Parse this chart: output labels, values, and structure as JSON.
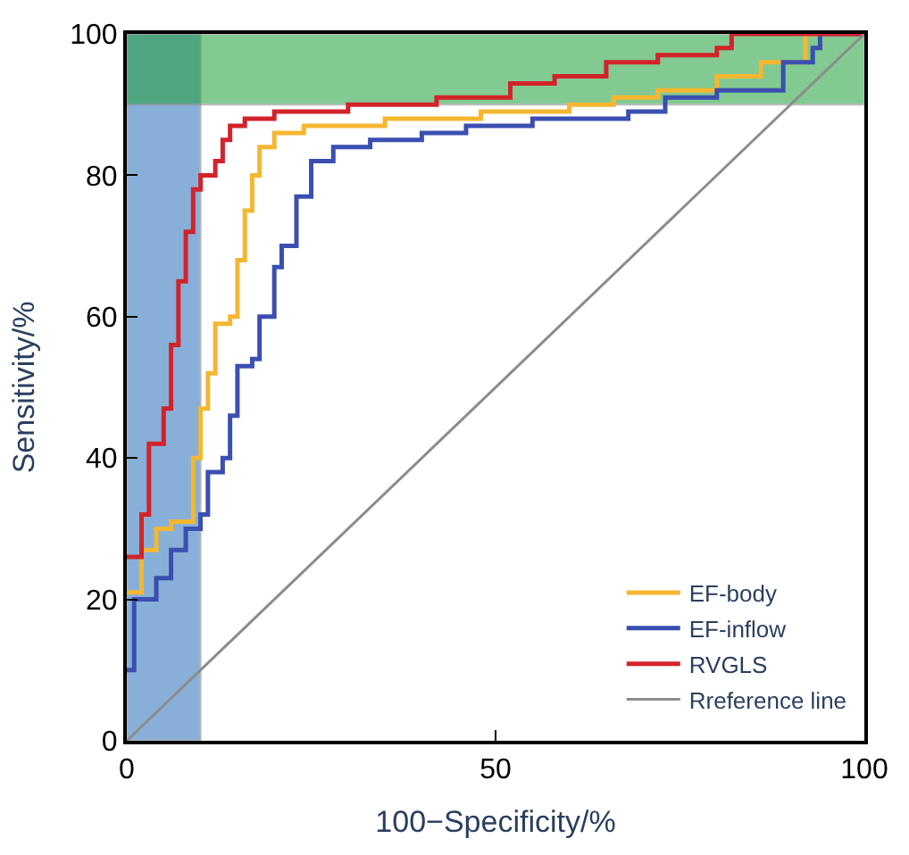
{
  "chart_data": {
    "type": "step",
    "xlabel": "100−Specificity/%",
    "ylabel": "Sensitivity/%",
    "xlim": [
      0,
      100
    ],
    "ylim": [
      0,
      100
    ],
    "xticks": [
      0,
      50,
      100
    ],
    "yticks": [
      0,
      20,
      40,
      60,
      80,
      100
    ],
    "grid": false,
    "legend": "bottom right",
    "marker": "none",
    "line_style": "solid",
    "series": [
      {
        "name": "EF-body",
        "color": "#f5b731",
        "x": [
          0,
          2,
          4,
          6,
          9,
          10,
          11,
          12,
          14,
          15,
          16,
          17,
          18,
          20,
          24,
          35,
          48,
          60,
          66,
          72,
          80,
          86,
          92,
          100
        ],
        "values": [
          21,
          27,
          30,
          31,
          40,
          47,
          52,
          59,
          60,
          68,
          75,
          80,
          84,
          86,
          87,
          88,
          89,
          90,
          91,
          92,
          94,
          96,
          100,
          100
        ]
      },
      {
        "name": "EF-inflow",
        "color": "#3a4fb0",
        "x": [
          0,
          1,
          4,
          6,
          8,
          10,
          11,
          13,
          14,
          15,
          17,
          18,
          20,
          21,
          23,
          25,
          28,
          33,
          40,
          46,
          55,
          68,
          73,
          80,
          89,
          93,
          94,
          100
        ],
        "values": [
          10,
          20,
          23,
          27,
          30,
          32,
          38,
          40,
          46,
          53,
          54,
          60,
          67,
          70,
          77,
          82,
          84,
          85,
          86,
          87,
          88,
          89,
          91,
          92,
          96,
          98,
          100,
          100
        ]
      },
      {
        "name": "RVGLS",
        "color": "#d2232a",
        "x": [
          0,
          2,
          3,
          5,
          6,
          7,
          8,
          9,
          10,
          12,
          13,
          14,
          16,
          20,
          30,
          42,
          52,
          58,
          65,
          72,
          80,
          82,
          100
        ],
        "values": [
          26,
          32,
          42,
          47,
          56,
          65,
          72,
          78,
          80,
          82,
          85,
          87,
          88,
          89,
          90,
          91,
          93,
          94,
          96,
          97,
          98,
          100,
          100
        ]
      },
      {
        "name": "Rreference line",
        "type": "line",
        "color": "#8c8c8c",
        "x": [
          0,
          100
        ],
        "values": [
          0,
          100
        ]
      }
    ],
    "bands": [
      {
        "axis": "x",
        "from": 0,
        "to": 10,
        "color": "#3a7bbf"
      },
      {
        "axis": "y",
        "from": 90,
        "to": 100,
        "color": "#1f9e3a"
      }
    ]
  }
}
